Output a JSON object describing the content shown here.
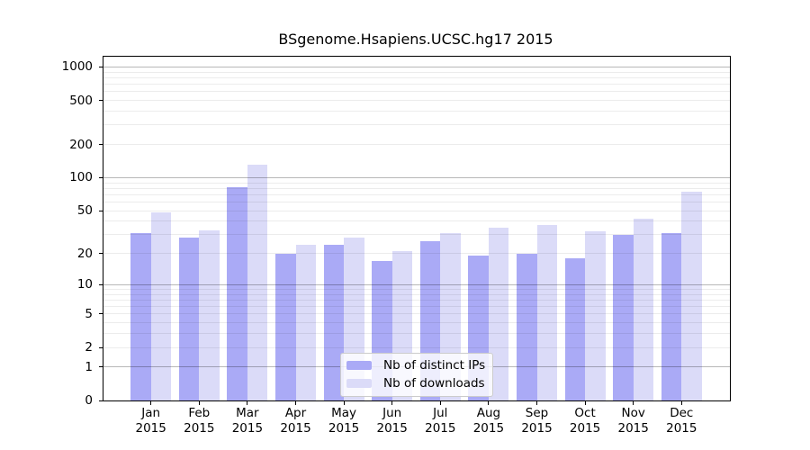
{
  "chart_data": {
    "type": "bar",
    "title": "BSgenome.Hsapiens.UCSC.hg17 2015",
    "categories": [
      "Jan",
      "Feb",
      "Mar",
      "Apr",
      "May",
      "Jun",
      "Jul",
      "Aug",
      "Sep",
      "Oct",
      "Nov",
      "Dec"
    ],
    "year": "2015",
    "series": [
      {
        "name": "Nb of distinct IPs",
        "color": "#aaaaf6",
        "values": [
          31,
          28,
          82,
          20,
          24,
          17,
          26,
          19,
          20,
          18,
          30,
          31
        ]
      },
      {
        "name": "Nb of downloads",
        "color": "#dbdbf8",
        "values": [
          48,
          33,
          132,
          24,
          28,
          21,
          31,
          35,
          37,
          32,
          42,
          75
        ]
      }
    ],
    "xlabel": "",
    "ylabel": "",
    "yscale": "log10(value+1)",
    "ytick_values": [
      0,
      1,
      2,
      5,
      10,
      20,
      50,
      100,
      200,
      500,
      1000
    ],
    "ylim": [
      0,
      1240
    ],
    "grid": true,
    "gridline_colors": {
      "major": "#b8b8b8",
      "minor": "#ebebeb"
    },
    "legend_position": "lower center"
  }
}
